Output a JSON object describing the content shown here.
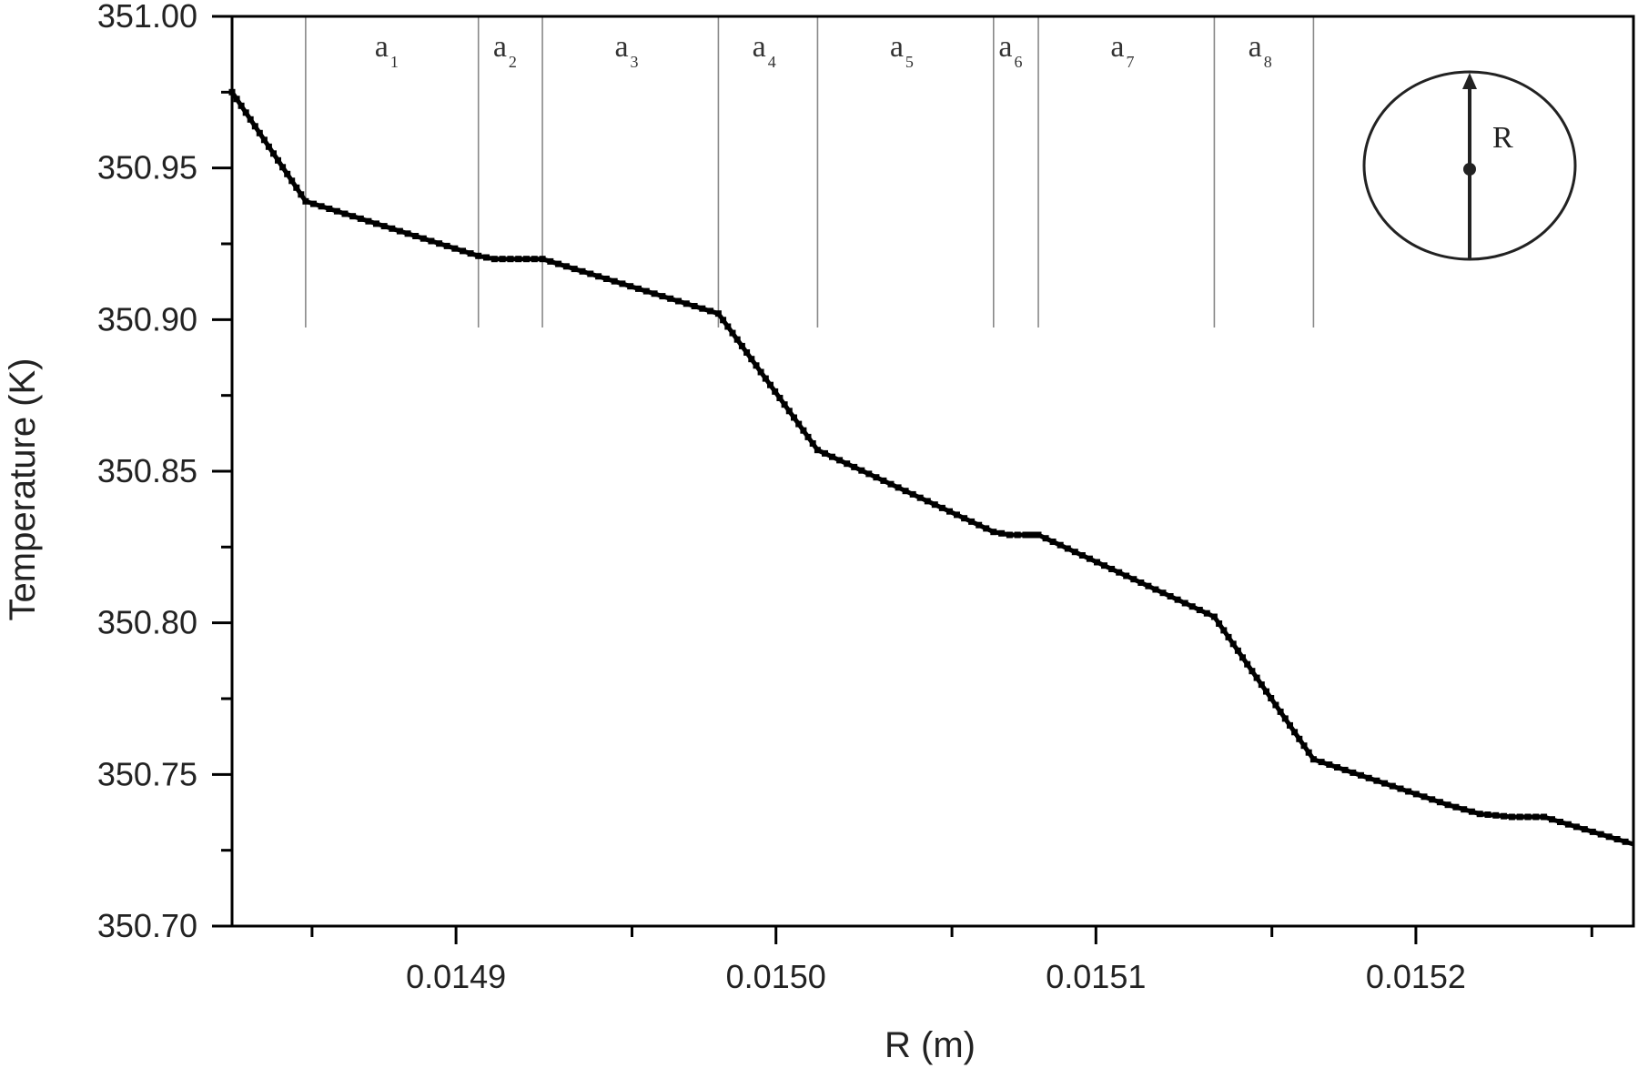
{
  "chart_data": {
    "type": "line",
    "xlabel": "R (m)",
    "ylabel": "Temperature (K)",
    "xlim": [
      0.01483,
      0.015268
    ],
    "ylim": [
      350.7,
      351.0
    ],
    "x_ticks": [
      {
        "value": 0.0149,
        "label": "0.0149"
      },
      {
        "value": 0.015,
        "label": "0.0150"
      },
      {
        "value": 0.0151,
        "label": "0.0151"
      },
      {
        "value": 0.0152,
        "label": "0.0152"
      }
    ],
    "x_minor_ticks": [
      0.014855,
      0.014955,
      0.015055,
      0.015155,
      0.015255
    ],
    "y_ticks": [
      {
        "value": 350.7,
        "label": "350.70"
      },
      {
        "value": 350.75,
        "label": "350.75"
      },
      {
        "value": 350.8,
        "label": "350.80"
      },
      {
        "value": 350.85,
        "label": "350.85"
      },
      {
        "value": 350.9,
        "label": "350.90"
      },
      {
        "value": 350.95,
        "label": "350.95"
      },
      {
        "value": 351.0,
        "label": "351.00"
      }
    ],
    "y_minor_ticks": [
      350.725,
      350.775,
      350.825,
      350.875,
      350.925,
      350.975
    ],
    "grid": false,
    "legend": "none",
    "region_boundaries": [
      0.014853,
      0.014907,
      0.014927,
      0.014982,
      0.015013,
      0.015068,
      0.015082,
      0.015137,
      0.015168
    ],
    "region_labels": [
      {
        "label": "a",
        "sub": "1",
        "x": 0.01488
      },
      {
        "label": "a",
        "sub": "2",
        "x": 0.014917
      },
      {
        "label": "a",
        "sub": "3",
        "x": 0.014955
      },
      {
        "label": "a",
        "sub": "4",
        "x": 0.014998
      },
      {
        "label": "a",
        "sub": "5",
        "x": 0.015041
      },
      {
        "label": "a",
        "sub": "6",
        "x": 0.015075
      },
      {
        "label": "a",
        "sub": "7",
        "x": 0.01511
      },
      {
        "label": "a",
        "sub": "8",
        "x": 0.015153
      }
    ],
    "inset": {
      "label": "R"
    },
    "series": [
      {
        "x": [
          0.01483,
          0.014853,
          0.014907,
          0.014912,
          0.014922,
          0.014927,
          0.014982,
          0.015013,
          0.015068,
          0.015073,
          0.015078,
          0.015082,
          0.015137,
          0.015168,
          0.01521,
          0.01522,
          0.01523,
          0.01524,
          0.015268
        ],
        "y": [
          350.975,
          350.939,
          350.921,
          350.92,
          350.92,
          350.92,
          350.902,
          350.857,
          350.83,
          350.829,
          350.829,
          350.829,
          350.802,
          350.755,
          350.74,
          350.737,
          350.736,
          350.736,
          350.727
        ]
      }
    ]
  }
}
